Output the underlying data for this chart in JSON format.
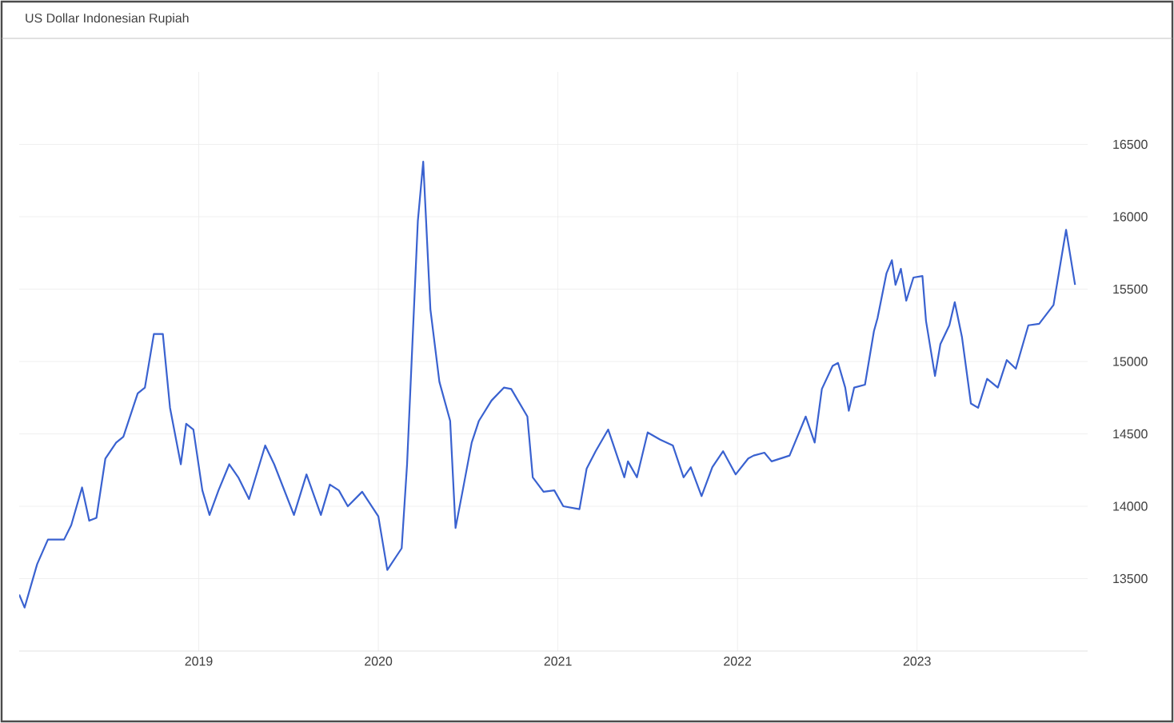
{
  "chart_data": {
    "type": "line",
    "title": "US Dollar Indonesian Rupiah",
    "x": [
      2018.0,
      2018.03,
      2018.1,
      2018.16,
      2018.25,
      2018.29,
      2018.35,
      2018.39,
      2018.43,
      2018.48,
      2018.54,
      2018.58,
      2018.66,
      2018.7,
      2018.75,
      2018.8,
      2018.84,
      2018.9,
      2018.93,
      2018.97,
      2019.02,
      2019.06,
      2019.11,
      2019.17,
      2019.22,
      2019.28,
      2019.37,
      2019.42,
      2019.53,
      2019.6,
      2019.68,
      2019.73,
      2019.78,
      2019.83,
      2019.91,
      2020.0,
      2020.05,
      2020.13,
      2020.16,
      2020.22,
      2020.25,
      2020.29,
      2020.34,
      2020.4,
      2020.43,
      2020.47,
      2020.52,
      2020.56,
      2020.63,
      2020.7,
      2020.74,
      2020.83,
      2020.86,
      2020.92,
      2020.98,
      2021.03,
      2021.12,
      2021.16,
      2021.21,
      2021.28,
      2021.37,
      2021.39,
      2021.44,
      2021.5,
      2021.57,
      2021.64,
      2021.7,
      2021.74,
      2021.8,
      2021.86,
      2021.92,
      2021.99,
      2022.06,
      2022.09,
      2022.15,
      2022.19,
      2022.29,
      2022.32,
      2022.38,
      2022.43,
      2022.47,
      2022.53,
      2022.56,
      2022.6,
      2022.62,
      2022.65,
      2022.71,
      2022.76,
      2022.78,
      2022.83,
      2022.86,
      2022.88,
      2022.91,
      2022.94,
      2022.98,
      2023.03,
      2023.05,
      2023.1,
      2023.13,
      2023.18,
      2023.21,
      2023.25,
      2023.3,
      2023.34,
      2023.39,
      2023.45,
      2023.5,
      2023.55,
      2023.62,
      2023.68,
      2023.76,
      2023.83,
      2023.88
    ],
    "series": [
      {
        "color": "#3a62d0",
        "values": [
          13390,
          13300,
          13600,
          13770,
          13770,
          13870,
          14130,
          13900,
          13920,
          14330,
          14440,
          14480,
          14780,
          14820,
          15190,
          15190,
          14680,
          14290,
          14570,
          14530,
          14110,
          13940,
          14110,
          14290,
          14200,
          14050,
          14420,
          14290,
          13940,
          14220,
          13940,
          14150,
          14110,
          14000,
          14100,
          13930,
          13560,
          13710,
          14290,
          15970,
          16380,
          15360,
          14860,
          14590,
          13850,
          14110,
          14440,
          14590,
          14730,
          14820,
          14810,
          14620,
          14200,
          14100,
          14110,
          14000,
          13980,
          14260,
          14380,
          14530,
          14200,
          14310,
          14200,
          14510,
          14460,
          14420,
          14200,
          14270,
          14070,
          14270,
          14380,
          14220,
          14330,
          14350,
          14370,
          14310,
          14350,
          14440,
          14620,
          14440,
          14810,
          14970,
          14990,
          14820,
          14660,
          14820,
          14840,
          15210,
          15300,
          15610,
          15700,
          15530,
          15640,
          15420,
          15580,
          15590,
          15280,
          14900,
          15120,
          15250,
          15410,
          15170,
          14710,
          14680,
          14880,
          14820,
          15010,
          14950,
          15250,
          15260,
          15390,
          15910,
          15530
        ]
      }
    ],
    "xlim": [
      2018.0,
      2023.95
    ],
    "xticks": [
      2019,
      2020,
      2021,
      2022,
      2023
    ],
    "ylim": [
      13000,
      17000
    ],
    "yticks": [
      13500,
      14000,
      14500,
      15000,
      15500,
      16000,
      16500
    ],
    "grid": true,
    "marker": "none",
    "line_style": "solid"
  }
}
